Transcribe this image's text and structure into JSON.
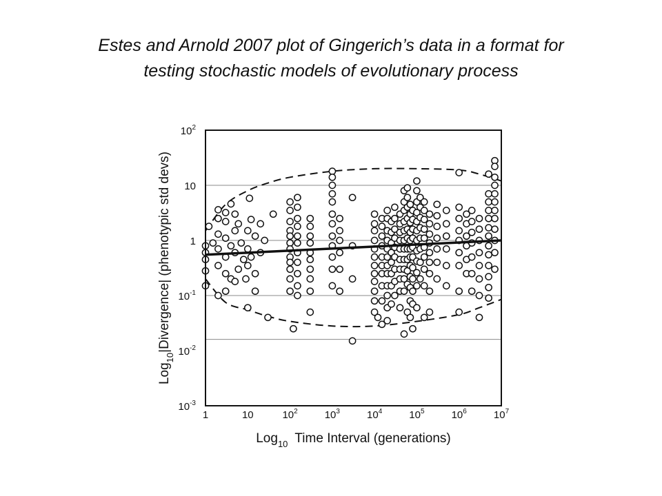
{
  "slide": {
    "title_line1": "Estes and Arnold 2007 plot of Gingerich’s data in a format for",
    "title_line2": "testing stochastic models of evolutionary process"
  },
  "chart_data": {
    "type": "scatter",
    "xlabel": {
      "prefix": "Log",
      "sub": "10",
      "text": "Time Interval (generations)"
    },
    "ylabel": {
      "prefix": "Log",
      "sub": "10",
      "text": "|Divergence| (phenotypic std devs)"
    },
    "x_scale": "log",
    "y_scale": "log",
    "xlim": [
      1,
      10000000
    ],
    "ylim": [
      0.001,
      100
    ],
    "x_ticks": [
      {
        "value": 1,
        "base": "1",
        "exp": ""
      },
      {
        "value": 10,
        "base": "10",
        "exp": ""
      },
      {
        "value": 100,
        "base": "10",
        "exp": "2"
      },
      {
        "value": 1000,
        "base": "10",
        "exp": "3"
      },
      {
        "value": 10000,
        "base": "10",
        "exp": "4"
      },
      {
        "value": 100000,
        "base": "10",
        "exp": "5"
      },
      {
        "value": 1000000,
        "base": "10",
        "exp": "6"
      },
      {
        "value": 10000000,
        "base": "10",
        "exp": "7"
      }
    ],
    "y_ticks": [
      {
        "value": 0.001,
        "base": "10",
        "exp": "-3"
      },
      {
        "value": 0.01,
        "base": "10",
        "exp": "-2"
      },
      {
        "value": 0.1,
        "base": "10",
        "exp": "-1"
      },
      {
        "value": 1,
        "base": "1",
        "exp": ""
      },
      {
        "value": 10,
        "base": "10",
        "exp": ""
      },
      {
        "value": 100,
        "base": "10",
        "exp": "2"
      }
    ],
    "reference_lines_y": [
      0.016,
      0.1,
      1,
      10
    ],
    "regression_line": {
      "x": [
        1,
        10000000
      ],
      "y": [
        0.55,
        1.0
      ]
    },
    "envelope_upper": {
      "x": [
        1,
        3,
        10,
        30,
        100,
        1000,
        10000,
        100000,
        1000000,
        3000000,
        10000000
      ],
      "y": [
        1.5,
        4.5,
        8,
        11,
        14,
        18,
        20,
        20,
        19,
        16,
        12
      ]
    },
    "envelope_lower": {
      "x": [
        1,
        3,
        10,
        30,
        100,
        1000,
        10000,
        100000,
        1000000,
        3000000,
        10000000
      ],
      "y": [
        0.2,
        0.075,
        0.055,
        0.042,
        0.034,
        0.028,
        0.028,
        0.034,
        0.045,
        0.06,
        0.085
      ]
    },
    "points": {
      "x": [
        1,
        1,
        1,
        1,
        1,
        1.2,
        1.5,
        2,
        2,
        2,
        2,
        2,
        2,
        3,
        3,
        3,
        3,
        3,
        3,
        4,
        4,
        4,
        5,
        5,
        5,
        5,
        6,
        6,
        7,
        8,
        9,
        10,
        10,
        10,
        10,
        11,
        12,
        12,
        15,
        15,
        15,
        20,
        20,
        25,
        30,
        40,
        100,
        100,
        100,
        100,
        100,
        100,
        100,
        100,
        100,
        100,
        100,
        100,
        120,
        150,
        150,
        150,
        150,
        150,
        150,
        150,
        150,
        150,
        150,
        150,
        300,
        300,
        300,
        300,
        300,
        300,
        300,
        300,
        300,
        300,
        1000,
        1000,
        1000,
        1000,
        1000,
        1000,
        1000,
        1000,
        1000,
        1000,
        1000,
        1000,
        1500,
        1500,
        1500,
        1500,
        1500,
        1500,
        3000,
        3000,
        3000,
        3000,
        10000,
        10000,
        10000,
        10000,
        10000,
        10000,
        10000,
        10000,
        10000,
        10000,
        10000,
        10000,
        12000,
        15000,
        15000,
        15000,
        15000,
        15000,
        15000,
        15000,
        15000,
        15000,
        15000,
        20000,
        20000,
        20000,
        20000,
        20000,
        20000,
        20000,
        20000,
        20000,
        20000,
        20000,
        20000,
        25000,
        25000,
        25000,
        25000,
        25000,
        25000,
        25000,
        25000,
        30000,
        30000,
        30000,
        30000,
        30000,
        30000,
        30000,
        30000,
        30000,
        40000,
        40000,
        40000,
        40000,
        40000,
        40000,
        40000,
        40000,
        40000,
        40000,
        50000,
        50000,
        50000,
        50000,
        50000,
        50000,
        50000,
        50000,
        50000,
        50000,
        50000,
        50000,
        60000,
        60000,
        60000,
        60000,
        60000,
        60000,
        60000,
        60000,
        60000,
        60000,
        60000,
        70000,
        70000,
        70000,
        70000,
        70000,
        70000,
        70000,
        70000,
        70000,
        70000,
        70000,
        70000,
        80000,
        80000,
        80000,
        80000,
        80000,
        80000,
        80000,
        80000,
        80000,
        80000,
        80000,
        100000,
        100000,
        100000,
        100000,
        100000,
        100000,
        100000,
        100000,
        100000,
        100000,
        100000,
        100000,
        120000,
        120000,
        120000,
        120000,
        120000,
        120000,
        120000,
        120000,
        150000,
        150000,
        150000,
        150000,
        150000,
        150000,
        150000,
        150000,
        150000,
        150000,
        200000,
        200000,
        200000,
        200000,
        200000,
        200000,
        200000,
        200000,
        200000,
        300000,
        300000,
        300000,
        300000,
        300000,
        300000,
        300000,
        500000,
        500000,
        500000,
        500000,
        500000,
        500000,
        1000000,
        1000000,
        1000000,
        1000000,
        1000000,
        1000000,
        1000000,
        1000000,
        1000000,
        1500000,
        1500000,
        1500000,
        1500000,
        1500000,
        1500000,
        2000000,
        2000000,
        2000000,
        2000000,
        2000000,
        2000000,
        2000000,
        3000000,
        3000000,
        3000000,
        3000000,
        3000000,
        3000000,
        3000000,
        3000000,
        5000000,
        5000000,
        5000000,
        5000000,
        5000000,
        5000000,
        5000000,
        5000000,
        5000000,
        5000000,
        5000000,
        5000000,
        5000000,
        7000000,
        7000000,
        7000000,
        7000000,
        7000000,
        7000000,
        7000000,
        7000000,
        7000000,
        7000000,
        7000000,
        7000000
      ],
      "y": [
        0.8,
        0.45,
        0.28,
        0.15,
        0.6,
        1.8,
        0.9,
        3.6,
        2.5,
        1.3,
        0.7,
        0.35,
        0.1,
        3.2,
        2.2,
        1.1,
        0.5,
        0.25,
        0.12,
        4.6,
        0.8,
        0.2,
        3,
        1.5,
        0.6,
        0.18,
        2,
        0.3,
        0.9,
        0.45,
        0.2,
        1.5,
        0.7,
        0.35,
        0.06,
        5.8,
        2.4,
        0.5,
        1.2,
        0.25,
        0.12,
        2,
        0.6,
        1,
        0.04,
        3,
        5,
        3.5,
        2.2,
        1.5,
        1.2,
        0.9,
        0.7,
        0.5,
        0.4,
        0.3,
        0.2,
        0.12,
        0.025,
        6,
        4,
        2.5,
        1.8,
        1.2,
        0.9,
        0.6,
        0.4,
        0.25,
        0.15,
        0.1,
        0.05,
        2.5,
        1.8,
        1.2,
        0.9,
        0.6,
        0.45,
        0.3,
        0.2,
        0.12,
        18,
        14,
        10,
        7,
        5,
        3,
        2,
        1.2,
        0.8,
        0.5,
        0.3,
        0.15,
        2.5,
        1.5,
        1,
        0.6,
        0.3,
        0.12,
        0.015,
        6,
        0.8,
        0.2,
        3,
        2,
        1.5,
        1,
        0.7,
        0.5,
        0.35,
        0.25,
        0.18,
        0.12,
        0.08,
        0.05,
        0.04,
        2.5,
        1.8,
        1.2,
        0.8,
        0.5,
        0.35,
        0.25,
        0.15,
        0.08,
        0.03,
        3.5,
        2.5,
        1.5,
        1,
        0.7,
        0.5,
        0.35,
        0.25,
        0.15,
        0.1,
        0.06,
        0.035,
        2.2,
        1.4,
        0.9,
        0.6,
        0.4,
        0.25,
        0.15,
        0.07,
        4,
        2.5,
        1.6,
        1.1,
        0.75,
        0.5,
        0.3,
        0.18,
        0.1,
        3,
        2,
        1.4,
        1,
        0.7,
        0.45,
        0.3,
        0.2,
        0.12,
        0.06,
        8,
        5,
        3.5,
        2.2,
        1.5,
        1,
        0.7,
        0.45,
        0.3,
        0.2,
        0.12,
        0.02,
        9,
        6,
        4,
        2.5,
        1.6,
        1.1,
        0.7,
        0.45,
        0.28,
        0.16,
        0.05,
        4.5,
        3,
        2.1,
        1.4,
        1,
        0.7,
        0.5,
        0.35,
        0.22,
        0.14,
        0.08,
        0.04,
        3.5,
        2.4,
        1.6,
        1.1,
        0.75,
        0.5,
        0.32,
        0.2,
        0.12,
        0.07,
        0.025,
        12,
        8,
        5,
        3.2,
        2.2,
        1.5,
        1,
        0.65,
        0.42,
        0.26,
        0.15,
        0.06,
        6,
        4,
        2.6,
        1.7,
        1.1,
        0.7,
        0.4,
        0.2,
        5,
        3.5,
        2.4,
        1.6,
        1.1,
        0.75,
        0.5,
        0.3,
        0.15,
        0.04,
        3,
        2,
        1.3,
        0.9,
        0.6,
        0.4,
        0.25,
        0.12,
        0.05,
        4.5,
        2.8,
        1.8,
        1.1,
        0.7,
        0.4,
        0.2,
        3.5,
        2,
        1.2,
        0.7,
        0.35,
        0.15,
        17,
        4,
        2.5,
        1.5,
        1,
        0.6,
        0.35,
        0.12,
        0.05,
        3,
        2,
        1.2,
        0.8,
        0.45,
        0.25,
        3.5,
        2.2,
        1.4,
        0.9,
        0.5,
        0.25,
        0.12,
        2.5,
        1.6,
        1,
        0.6,
        0.35,
        0.2,
        0.1,
        0.04,
        16,
        7,
        5,
        3.5,
        2.5,
        1.7,
        1.2,
        0.8,
        0.55,
        0.35,
        0.22,
        0.14,
        0.09,
        28,
        22,
        14,
        10,
        7,
        5,
        3.5,
        2.5,
        1.6,
        1,
        0.6,
        0.3
      ]
    }
  }
}
